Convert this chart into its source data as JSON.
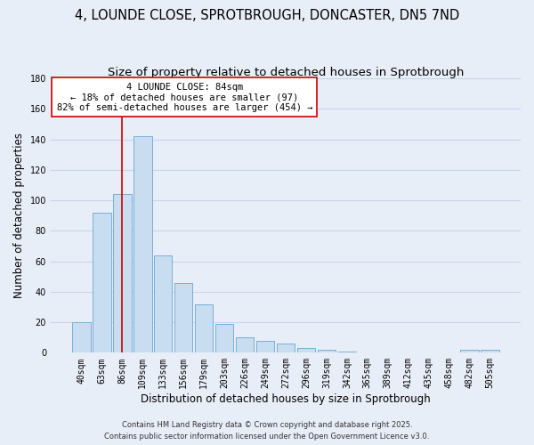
{
  "title_line1": "4, LOUNDE CLOSE, SPROTBROUGH, DONCASTER, DN5 7ND",
  "title_line2": "Size of property relative to detached houses in Sprotbrough",
  "xlabel": "Distribution of detached houses by size in Sprotbrough",
  "ylabel": "Number of detached properties",
  "bar_labels": [
    "40sqm",
    "63sqm",
    "86sqm",
    "109sqm",
    "133sqm",
    "156sqm",
    "179sqm",
    "203sqm",
    "226sqm",
    "249sqm",
    "272sqm",
    "296sqm",
    "319sqm",
    "342sqm",
    "365sqm",
    "389sqm",
    "412sqm",
    "435sqm",
    "458sqm",
    "482sqm",
    "505sqm"
  ],
  "bar_values": [
    20,
    92,
    104,
    142,
    64,
    46,
    32,
    19,
    10,
    8,
    6,
    3,
    2,
    1,
    0,
    0,
    0,
    0,
    0,
    2,
    2
  ],
  "bar_color": "#c8ddf0",
  "bar_edge_color": "#7aaed6",
  "ylim": [
    0,
    180
  ],
  "yticks": [
    0,
    20,
    40,
    60,
    80,
    100,
    120,
    140,
    160,
    180
  ],
  "vline_x": 2,
  "vline_color": "#cc0000",
  "annotation_title": "4 LOUNDE CLOSE: 84sqm",
  "annotation_line1": "← 18% of detached houses are smaller (97)",
  "annotation_line2": "82% of semi-detached houses are larger (454) →",
  "footer_line1": "Contains HM Land Registry data © Crown copyright and database right 2025.",
  "footer_line2": "Contains public sector information licensed under the Open Government Licence v3.0.",
  "background_color": "#e8eef8",
  "grid_color": "#c8d4e8",
  "title_fontsize": 10.5,
  "subtitle_fontsize": 9.5,
  "axis_label_fontsize": 8.5,
  "tick_fontsize": 7,
  "footer_fontsize": 6,
  "ann_fontsize": 7.5
}
